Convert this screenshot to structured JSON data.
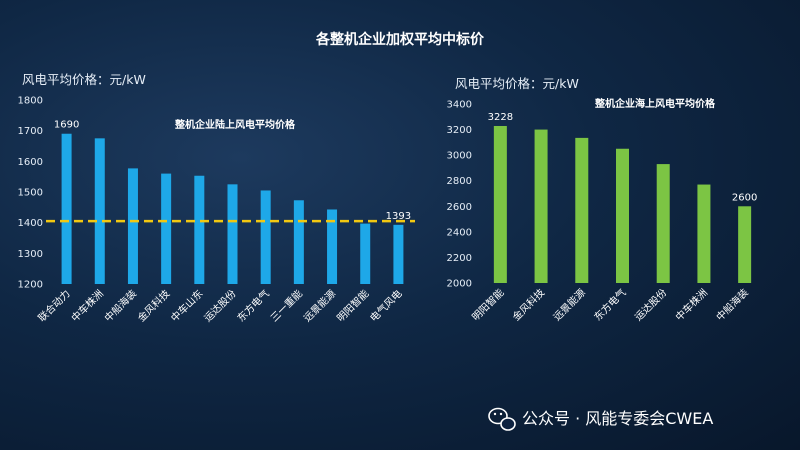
{
  "page": {
    "title": "各整机企业加权平均中标价",
    "watermark": "公众号 · 风能专委会CWEA"
  },
  "chart_data": [
    {
      "type": "bar",
      "title": "整机企业陆上风电平均价格",
      "ylabel": "风电平均价格：元/kW",
      "ylim": [
        1200,
        1800
      ],
      "ytick_step": 100,
      "bar_color": "#1ea8e8",
      "categories": [
        "联合动力",
        "中车株洲",
        "中船海装",
        "金风科技",
        "中车山东",
        "运达股份",
        "东方电气",
        "三一重能",
        "远景能源",
        "明阳智能",
        "电气风电"
      ],
      "values": [
        1690,
        1675,
        1577,
        1560,
        1553,
        1525,
        1505,
        1473,
        1443,
        1397,
        1393
      ],
      "data_labels": [
        {
          "index": 0,
          "text": "1690"
        },
        {
          "index": 10,
          "text": "1393"
        }
      ],
      "average_line": {
        "value": 1405,
        "color": "#f2c811"
      }
    },
    {
      "type": "bar",
      "title": "整机企业海上风电平均价格",
      "ylabel": "风电平均价格：元/kW",
      "ylim": [
        2000,
        3400
      ],
      "ytick_step": 200,
      "bar_color": "#7cc544",
      "categories": [
        "明阳智能",
        "金风科技",
        "远景能源",
        "东方电气",
        "运达股份",
        "中车株洲",
        "中船海装"
      ],
      "values": [
        3228,
        3200,
        3135,
        3050,
        2930,
        2770,
        2600
      ],
      "data_labels": [
        {
          "index": 0,
          "text": "3228"
        },
        {
          "index": 6,
          "text": "2600"
        }
      ]
    }
  ]
}
